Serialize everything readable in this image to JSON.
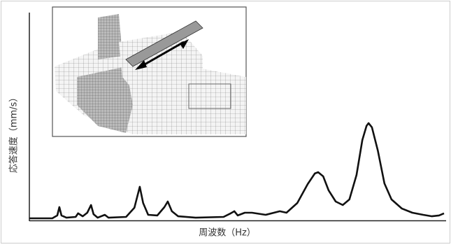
{
  "chart_data": {
    "type": "line",
    "xlabel": "周波数（Hz）",
    "ylabel": "応答速度（mm/s）",
    "x": [
      0,
      5.5,
      6.7,
      7.2,
      7.7,
      8.9,
      11.1,
      11.7,
      12.8,
      13.9,
      14.8,
      15.4,
      16.4,
      18.1,
      19.0,
      23.2,
      25.2,
      26.5,
      27.3,
      28.5,
      30.7,
      32.4,
      33.2,
      34.2,
      35.7,
      39.9,
      46.6,
      48.3,
      49.2,
      50.0,
      51.7,
      53.4,
      56.7,
      60.1,
      61.7,
      64.3,
      66.8,
      68.5,
      69.3,
      70.5,
      71.8,
      73.5,
      75.2,
      76.8,
      78.5,
      79.9,
      80.9,
      81.4,
      82.2,
      83.6,
      85.2,
      86.9,
      89.4,
      91.9,
      94.5,
      96.6,
      98.3,
      99.5
    ],
    "values": [
      1.0,
      1.0,
      2.4,
      6.4,
      2.4,
      1.3,
      1.7,
      3.4,
      2.0,
      3.7,
      7.4,
      3.0,
      1.3,
      2.7,
      1.3,
      1.7,
      6.1,
      16.2,
      8.4,
      2.7,
      2.4,
      6.4,
      9.1,
      4.4,
      2.0,
      1.3,
      1.7,
      3.4,
      4.4,
      2.4,
      3.7,
      3.7,
      2.7,
      4.4,
      3.7,
      8.4,
      17.5,
      22.6,
      23.2,
      21.2,
      14.5,
      9.1,
      7.4,
      10.1,
      21.9,
      38.7,
      45.5,
      46.8,
      44.8,
      33.7,
      17.8,
      10.1,
      5.7,
      3.7,
      2.7,
      2.0,
      2.4,
      3.4
    ],
    "color": "#111111",
    "xlim": [
      0,
      100
    ],
    "ylim": [
      0,
      100
    ]
  }
}
